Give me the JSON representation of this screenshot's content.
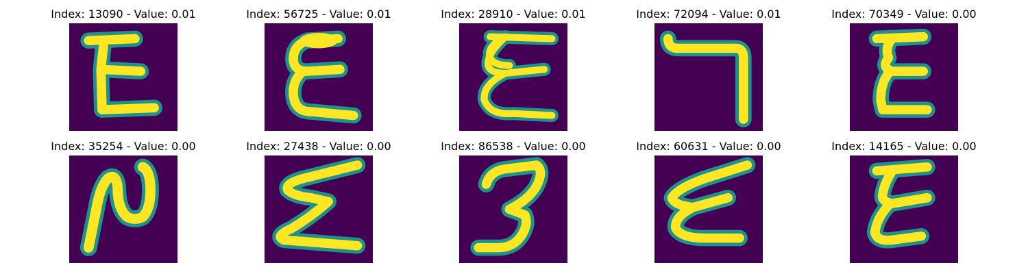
{
  "colors": {
    "background": "#440154",
    "stroke_edge": "#21918c",
    "stroke_core": "#fde725"
  },
  "panels": [
    {
      "title": "Index: 13090 - Value: 0.01"
    },
    {
      "title": "Index: 56725 - Value: 0.01"
    },
    {
      "title": "Index: 28910 - Value: 0.01"
    },
    {
      "title": "Index: 72094 - Value: 0.01"
    },
    {
      "title": "Index: 70349 - Value: 0.00"
    },
    {
      "title": "Index: 35254 - Value: 0.00"
    },
    {
      "title": "Index: 27438 - Value: 0.00"
    },
    {
      "title": "Index: 86538 - Value: 0.00"
    },
    {
      "title": "Index: 60631 - Value: 0.00"
    },
    {
      "title": "Index: 14165 - Value: 0.00"
    }
  ]
}
